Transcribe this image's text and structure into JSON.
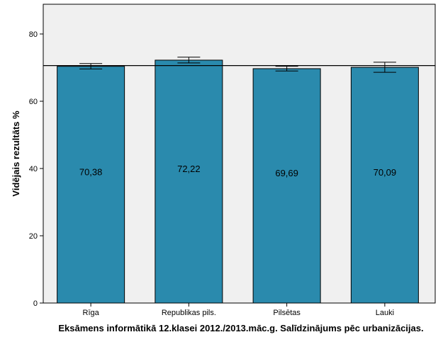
{
  "chart_data": {
    "type": "bar",
    "categories": [
      "Rīga",
      "Republikas pils.",
      "Pilsētas",
      "Lauki"
    ],
    "values": [
      70.38,
      72.22,
      69.69,
      70.09
    ],
    "value_labels": [
      "70,38",
      "72,22",
      "69,69",
      "70,09"
    ],
    "error_bars": [
      {
        "low": 69.6,
        "high": 71.2
      },
      {
        "low": 71.4,
        "high": 73.1
      },
      {
        "low": 69.0,
        "high": 70.4
      },
      {
        "low": 68.6,
        "high": 71.6
      }
    ],
    "reference_line": 70.6,
    "title": "",
    "xlabel": "Eksāmens informātikā 12.klasei 2012./2013.māc.g. Salīdzinājums pēc urbanizācijas.",
    "ylabel": "Vidējais rezultāts %",
    "ylim": [
      0,
      80
    ],
    "yticks": [
      0,
      20,
      40,
      60,
      80
    ],
    "grid": false,
    "colors": {
      "bar": "#2a8aad",
      "plot_background": "#f0f0f0",
      "axis": "#000000"
    }
  }
}
